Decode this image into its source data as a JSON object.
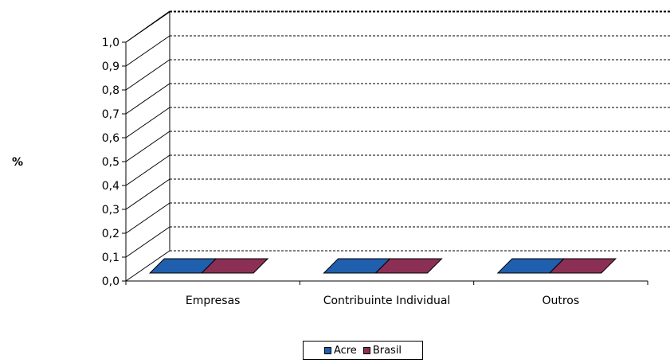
{
  "chart_data": {
    "type": "bar",
    "categories": [
      "Empresas",
      "Contribuinte Individual",
      "Outros"
    ],
    "series": [
      {
        "name": "Acre",
        "color": "#1F5FAD",
        "values": [
          0,
          0,
          0
        ]
      },
      {
        "name": "Brasil",
        "color": "#8B2F55",
        "values": [
          0,
          0,
          0
        ]
      }
    ],
    "ylabel": "%",
    "ylim": [
      0,
      1.0
    ],
    "yticks": [
      "0,0",
      "0,1",
      "0,2",
      "0,3",
      "0,4",
      "0,5",
      "0,6",
      "0,7",
      "0,8",
      "0,9",
      "1,0"
    ],
    "grid": true,
    "gridstyle": "dashed",
    "legend_position": "bottom",
    "style": "3d-clustered"
  }
}
